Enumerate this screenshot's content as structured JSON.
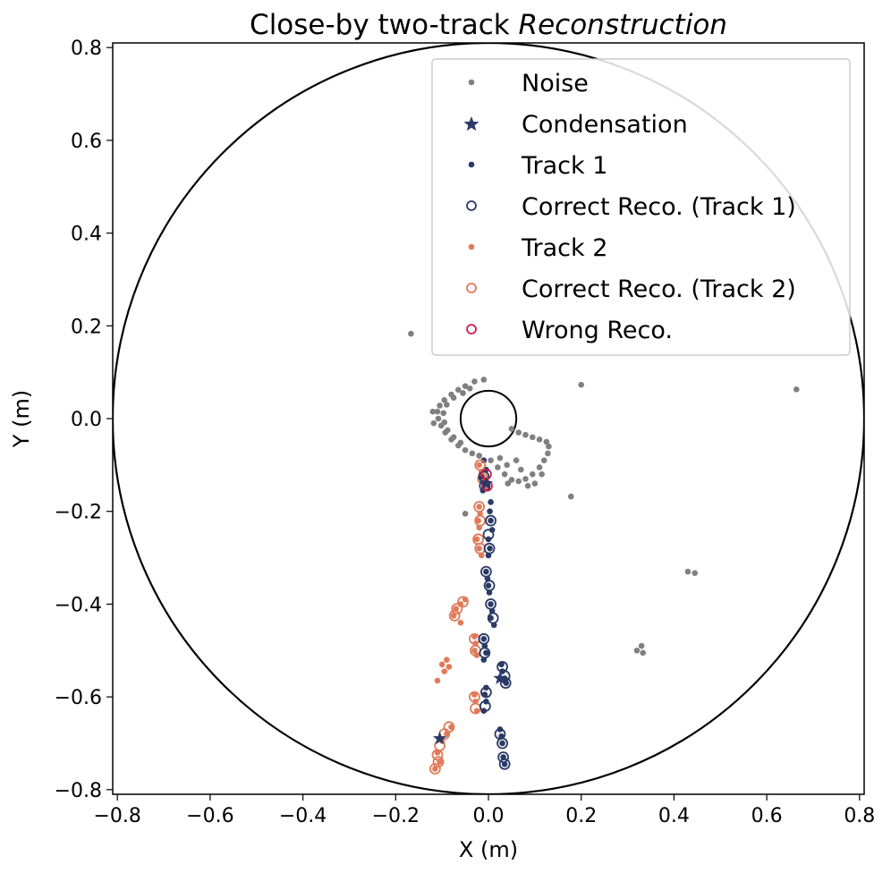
{
  "chart_data": {
    "type": "scatter",
    "title": "Close-by two-track",
    "title_italic": "Reconstruction",
    "xlabel": "X (m)",
    "ylabel": "Y (m)",
    "xlim": [
      -0.81,
      0.81
    ],
    "ylim": [
      -0.81,
      0.81
    ],
    "xticks": [
      -0.8,
      -0.6,
      -0.4,
      -0.2,
      0.0,
      0.2,
      0.4,
      0.6,
      0.8
    ],
    "yticks": [
      -0.8,
      -0.6,
      -0.4,
      -0.2,
      0.0,
      0.2,
      0.4,
      0.6,
      0.8
    ],
    "grid": false,
    "legend_position": "top-right",
    "outer_circle_radius": 0.81,
    "inner_circle_radius": 0.06,
    "colors": {
      "noise": "#808080",
      "track1": "#2b3a67",
      "track2": "#e07b5a",
      "wrong": "#d01c4a"
    },
    "legend": [
      {
        "label": "Noise",
        "marker": "dot",
        "color": "#808080"
      },
      {
        "label": "Condensation",
        "marker": "star",
        "color": "#2b3a67"
      },
      {
        "label": "Track 1",
        "marker": "dot",
        "color": "#2b3a67"
      },
      {
        "label": "Correct Reco. (Track 1)",
        "marker": "ring",
        "color": "#2b3a67"
      },
      {
        "label": "Track 2",
        "marker": "dot",
        "color": "#e07b5a"
      },
      {
        "label": "Correct Reco. (Track 2)",
        "marker": "ring",
        "color": "#e07b5a"
      },
      {
        "label": "Wrong Reco.",
        "marker": "ring",
        "color": "#d01c4a"
      }
    ],
    "series": {
      "noise": [
        [
          -0.167,
          0.183
        ],
        [
          0.2,
          0.073
        ],
        [
          0.664,
          0.063
        ],
        [
          0.178,
          -0.168
        ],
        [
          -0.05,
          -0.205
        ],
        [
          0.43,
          -0.33
        ],
        [
          0.445,
          -0.333
        ],
        [
          0.33,
          -0.49
        ],
        [
          0.32,
          -0.5
        ],
        [
          0.333,
          -0.505
        ],
        [
          -0.01,
          0.084
        ],
        [
          -0.03,
          0.08
        ],
        [
          -0.05,
          0.07
        ],
        [
          -0.065,
          0.062
        ],
        [
          -0.08,
          0.052
        ],
        [
          -0.095,
          0.04
        ],
        [
          -0.105,
          0.028
        ],
        [
          -0.11,
          0.015
        ],
        [
          -0.108,
          0.0
        ],
        [
          -0.102,
          -0.015
        ],
        [
          -0.093,
          -0.03
        ],
        [
          -0.08,
          -0.045
        ],
        [
          -0.065,
          -0.058
        ],
        [
          -0.05,
          -0.068
        ],
        [
          -0.035,
          -0.075
        ],
        [
          -0.02,
          -0.08
        ],
        [
          -0.075,
          0.045
        ],
        [
          -0.09,
          0.03
        ],
        [
          -0.097,
          0.012
        ],
        [
          -0.095,
          -0.008
        ],
        [
          -0.088,
          -0.025
        ],
        [
          -0.075,
          -0.04
        ],
        [
          -0.06,
          -0.052
        ],
        [
          -0.12,
          0.015
        ],
        [
          -0.118,
          -0.01
        ],
        [
          -0.055,
          0.055
        ],
        [
          -0.04,
          0.065
        ],
        [
          0.005,
          -0.09
        ],
        [
          0.02,
          -0.105
        ],
        [
          0.035,
          -0.12
        ],
        [
          0.05,
          -0.132
        ],
        [
          0.065,
          -0.135
        ],
        [
          0.08,
          -0.13
        ],
        [
          0.095,
          -0.12
        ],
        [
          0.11,
          -0.105
        ],
        [
          0.12,
          -0.09
        ],
        [
          0.128,
          -0.075
        ],
        [
          0.13,
          -0.06
        ],
        [
          0.125,
          -0.05
        ],
        [
          0.11,
          -0.045
        ],
        [
          0.095,
          -0.04
        ],
        [
          0.08,
          -0.035
        ],
        [
          0.065,
          -0.03
        ],
        [
          0.05,
          -0.022
        ],
        [
          0.085,
          -0.145
        ],
        [
          0.1,
          -0.14
        ],
        [
          0.115,
          -0.12
        ],
        [
          0.04,
          -0.1
        ],
        [
          0.025,
          -0.085
        ],
        [
          0.06,
          -0.09
        ],
        [
          0.07,
          -0.11
        ],
        [
          0.042,
          -0.14
        ]
      ],
      "track1": [
        [
          -0.01,
          -0.09
        ],
        [
          -0.005,
          -0.11
        ],
        [
          -0.015,
          -0.125
        ],
        [
          -0.008,
          -0.14
        ],
        [
          -0.012,
          -0.155
        ],
        [
          0.005,
          -0.18
        ],
        [
          0.003,
          -0.2
        ],
        [
          0.005,
          -0.22
        ],
        [
          0.008,
          -0.24
        ],
        [
          0.0,
          -0.26
        ],
        [
          0.003,
          -0.28
        ],
        [
          0.0,
          -0.295
        ],
        [
          -0.005,
          -0.33
        ],
        [
          -0.002,
          -0.345
        ],
        [
          0.0,
          -0.36
        ],
        [
          0.002,
          -0.375
        ],
        [
          0.005,
          -0.4
        ],
        [
          0.008,
          -0.415
        ],
        [
          0.005,
          -0.43
        ],
        [
          0.012,
          -0.445
        ],
        [
          -0.01,
          -0.475
        ],
        [
          -0.008,
          -0.49
        ],
        [
          -0.005,
          -0.505
        ],
        [
          -0.01,
          -0.52
        ],
        [
          0.028,
          -0.53
        ],
        [
          0.03,
          -0.545
        ],
        [
          0.035,
          -0.56
        ],
        [
          0.038,
          -0.57
        ],
        [
          -0.005,
          -0.58
        ],
        [
          -0.008,
          -0.595
        ],
        [
          -0.005,
          -0.61
        ],
        [
          -0.01,
          -0.63
        ],
        [
          0.025,
          -0.67
        ],
        [
          0.028,
          -0.685
        ],
        [
          0.03,
          -0.7
        ],
        [
          0.032,
          -0.73
        ],
        [
          0.035,
          -0.745
        ]
      ],
      "track1_reco": [
        [
          -0.01,
          -0.125
        ],
        [
          -0.008,
          -0.145
        ],
        [
          0.005,
          -0.22
        ],
        [
          0.0,
          -0.25
        ],
        [
          0.002,
          -0.28
        ],
        [
          -0.005,
          -0.33
        ],
        [
          0.002,
          -0.36
        ],
        [
          0.005,
          -0.4
        ],
        [
          0.01,
          -0.43
        ],
        [
          -0.01,
          -0.475
        ],
        [
          -0.008,
          -0.505
        ],
        [
          0.03,
          -0.535
        ],
        [
          0.035,
          -0.555
        ],
        [
          0.037,
          -0.57
        ],
        [
          -0.005,
          -0.59
        ],
        [
          -0.007,
          -0.62
        ],
        [
          0.025,
          -0.68
        ],
        [
          0.03,
          -0.7
        ],
        [
          0.032,
          -0.73
        ],
        [
          0.035,
          -0.745
        ]
      ],
      "track2": [
        [
          -0.02,
          -0.1
        ],
        [
          -0.015,
          -0.115
        ],
        [
          -0.01,
          -0.13
        ],
        [
          -0.005,
          -0.15
        ],
        [
          -0.02,
          -0.19
        ],
        [
          -0.018,
          -0.205
        ],
        [
          -0.022,
          -0.22
        ],
        [
          -0.02,
          -0.235
        ],
        [
          -0.025,
          -0.26
        ],
        [
          -0.02,
          -0.28
        ],
        [
          -0.015,
          -0.295
        ],
        [
          -0.05,
          -0.39
        ],
        [
          -0.06,
          -0.4
        ],
        [
          -0.07,
          -0.41
        ],
        [
          -0.075,
          -0.425
        ],
        [
          -0.06,
          -0.44
        ],
        [
          -0.03,
          -0.47
        ],
        [
          -0.028,
          -0.485
        ],
        [
          -0.03,
          -0.5
        ],
        [
          -0.025,
          -0.51
        ],
        [
          -0.09,
          -0.52
        ],
        [
          -0.1,
          -0.53
        ],
        [
          -0.085,
          -0.535
        ],
        [
          -0.095,
          -0.545
        ],
        [
          -0.11,
          -0.565
        ],
        [
          -0.03,
          -0.595
        ],
        [
          -0.028,
          -0.61
        ],
        [
          -0.025,
          -0.63
        ],
        [
          -0.08,
          -0.665
        ],
        [
          -0.09,
          -0.68
        ],
        [
          -0.1,
          -0.695
        ],
        [
          -0.11,
          -0.72
        ],
        [
          -0.105,
          -0.74
        ],
        [
          -0.115,
          -0.755
        ]
      ],
      "track2_reco": [
        [
          -0.018,
          -0.1
        ],
        [
          -0.012,
          -0.13
        ],
        [
          -0.02,
          -0.19
        ],
        [
          -0.018,
          -0.22
        ],
        [
          -0.022,
          -0.26
        ],
        [
          -0.018,
          -0.28
        ],
        [
          -0.055,
          -0.395
        ],
        [
          -0.068,
          -0.41
        ],
        [
          -0.073,
          -0.425
        ],
        [
          -0.03,
          -0.475
        ],
        [
          -0.028,
          -0.5
        ],
        [
          -0.03,
          -0.6
        ],
        [
          -0.028,
          -0.625
        ],
        [
          -0.085,
          -0.665
        ],
        [
          -0.095,
          -0.68
        ],
        [
          -0.105,
          -0.705
        ],
        [
          -0.11,
          -0.725
        ],
        [
          -0.108,
          -0.74
        ],
        [
          -0.115,
          -0.755
        ]
      ],
      "wrong_reco": [
        [
          -0.005,
          -0.12
        ],
        [
          -0.003,
          -0.145
        ]
      ],
      "condensation": [
        [
          -0.005,
          -0.14
        ],
        [
          0.025,
          -0.56
        ],
        [
          -0.105,
          -0.69
        ]
      ]
    }
  }
}
